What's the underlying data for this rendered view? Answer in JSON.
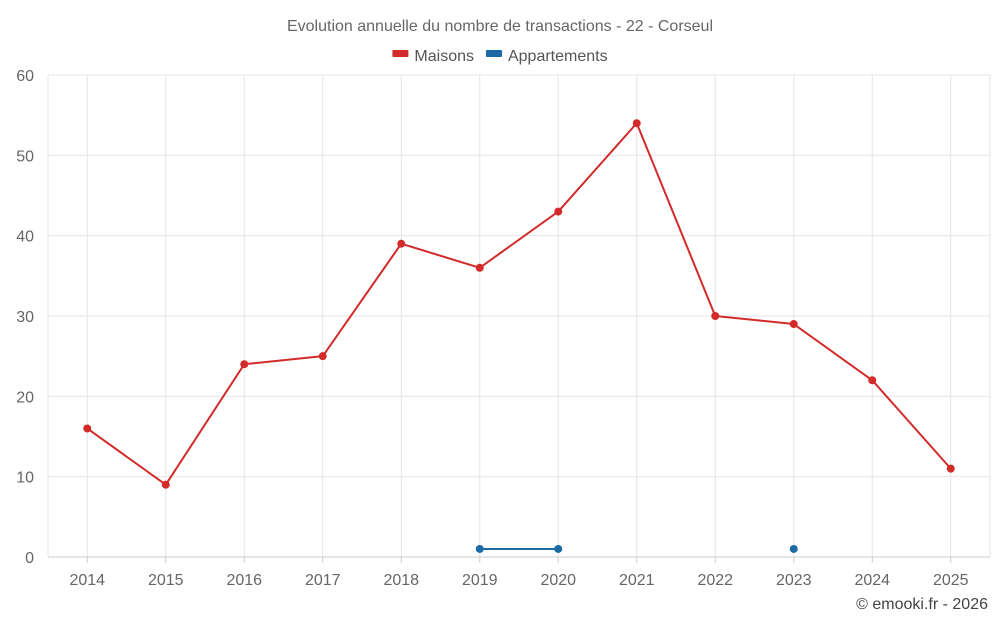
{
  "chart_data": {
    "type": "line",
    "title": "Evolution annuelle du nombre de transactions - 22 - Corseul",
    "categories": [
      "2014",
      "2015",
      "2016",
      "2017",
      "2018",
      "2019",
      "2020",
      "2021",
      "2022",
      "2023",
      "2024",
      "2025"
    ],
    "series": [
      {
        "name": "Maisons",
        "color": "#d32a2a",
        "values": [
          16,
          9,
          24,
          25,
          39,
          36,
          43,
          54,
          30,
          29,
          22,
          11
        ]
      },
      {
        "name": "Appartements",
        "color": "#1a6aa6",
        "values": [
          null,
          null,
          null,
          null,
          null,
          1,
          1,
          null,
          null,
          1,
          null,
          null
        ]
      }
    ],
    "ylim": [
      0,
      60
    ],
    "yticks": [
      0,
      10,
      20,
      30,
      40,
      50,
      60
    ],
    "grid": true,
    "legend_position": "top-center",
    "xlabel": "",
    "ylabel": ""
  },
  "credit": "© emooki.fr - 2026"
}
